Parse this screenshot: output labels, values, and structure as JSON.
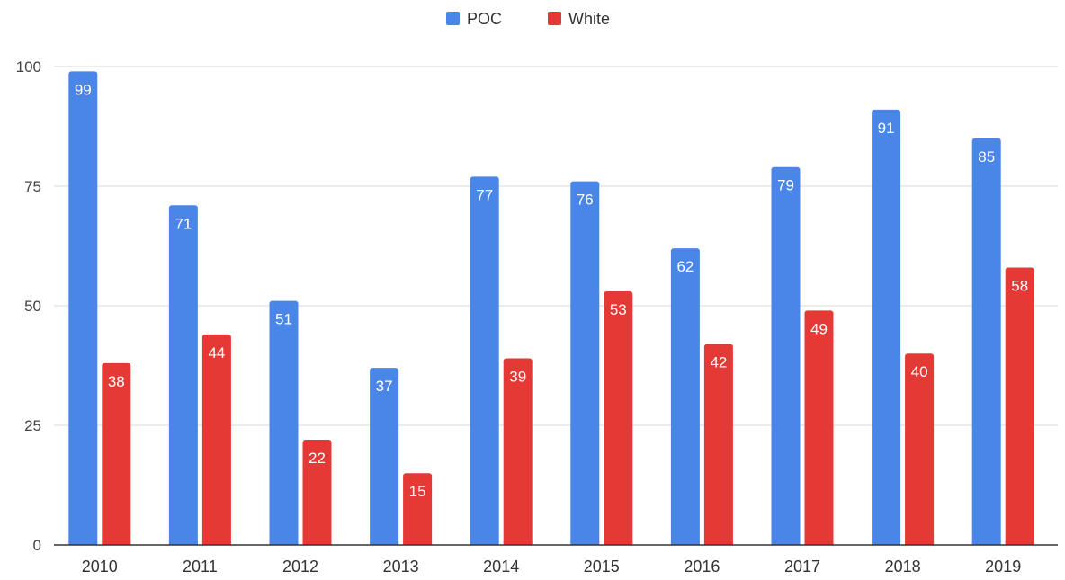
{
  "chart_data": {
    "type": "bar",
    "title": "",
    "xlabel": "",
    "ylabel": "",
    "categories": [
      "2010",
      "2011",
      "2012",
      "2013",
      "2014",
      "2015",
      "2016",
      "2017",
      "2018",
      "2019"
    ],
    "series": [
      {
        "name": "POC",
        "color": "#4a86e8",
        "values": [
          99,
          71,
          51,
          37,
          77,
          76,
          62,
          79,
          91,
          85
        ]
      },
      {
        "name": "White",
        "color": "#e53935",
        "values": [
          38,
          44,
          22,
          15,
          39,
          53,
          42,
          49,
          40,
          58
        ]
      }
    ],
    "ylim": [
      0,
      100
    ],
    "yticks": [
      0,
      25,
      50,
      75,
      100
    ],
    "grid": true,
    "legend_position": "top-center",
    "data_labels": true
  }
}
